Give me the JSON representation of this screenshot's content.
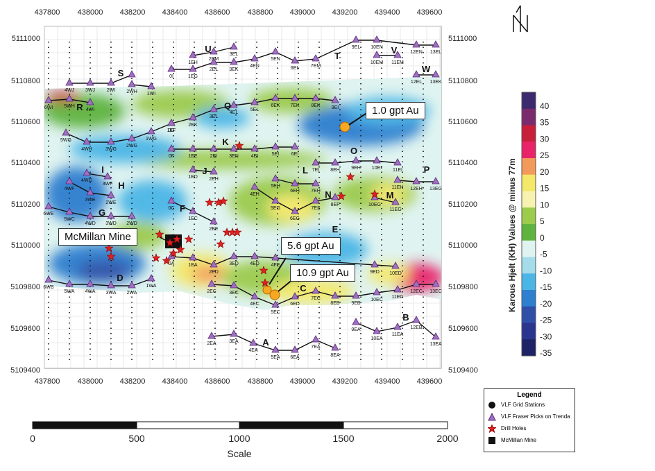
{
  "map": {
    "x_ticks": [
      "437800",
      "438000",
      "438200",
      "438400",
      "438600",
      "438800",
      "439000",
      "439200",
      "439400",
      "439600"
    ],
    "y_ticks": [
      "5111000",
      "5110800",
      "5110600",
      "5110400",
      "5110200",
      "5110000",
      "5109800",
      "5109600",
      "5109400"
    ],
    "north_label": "N"
  },
  "survey_lines": [
    {
      "label": "A",
      "stations": [
        "2EA",
        "3EA",
        "4EA",
        "5EA",
        "6EA",
        "7EA",
        "8EA"
      ]
    },
    {
      "label": "B",
      "stations": [
        "9EA",
        "10EA",
        "11EA",
        "12EB",
        "13EA"
      ]
    },
    {
      "label": "C",
      "stations": [
        "2EC",
        "3EC",
        "4EC",
        "5EC",
        "6ED",
        "7EC",
        "8EB",
        "9EB",
        "10EC",
        "11EC",
        "12EC",
        "13EC"
      ]
    },
    {
      "label": "D",
      "stations": [
        "6WB",
        "5WA",
        "4WA",
        "3WA",
        "2WA",
        "1WA"
      ]
    },
    {
      "label": "E",
      "stations": [
        "0A",
        "1EA",
        "2ED",
        "3ED",
        "4ED",
        "4FE",
        "9ED",
        "10ED"
      ]
    },
    {
      "label": "F",
      "stations": [
        "0C",
        "1EC",
        "2EE"
      ]
    },
    {
      "label": "G",
      "stations": [
        "6WE",
        "5WC",
        "4WD",
        "3WD",
        "2WD"
      ]
    },
    {
      "label": "H",
      "stations": [
        "4WF",
        "3WE",
        "2WE"
      ]
    },
    {
      "label": "I",
      "stations": [
        "4WG",
        "3WF"
      ]
    },
    {
      "label": "J",
      "stations": [
        "1ED",
        "2EH"
      ]
    },
    {
      "label": "K",
      "stations": [
        "0F",
        "1EE",
        "2EI",
        "3EN",
        "4EI",
        "5EI",
        "6EI"
      ]
    },
    {
      "label": "L",
      "stations": [
        "5EH",
        "6EH",
        "7EH"
      ]
    },
    {
      "label": "M",
      "stations": [
        "10EG",
        "11EG"
      ]
    },
    {
      "label": "N",
      "stations": [
        "4EH",
        "5EG",
        "6EG",
        "7ES",
        "8EF"
      ]
    },
    {
      "label": "O",
      "stations": [
        "7EI",
        "8EH",
        "9EH",
        "10EI",
        "11EI"
      ]
    },
    {
      "label": "P",
      "stations": [
        "11EH",
        "12EH",
        "13EG"
      ]
    },
    {
      "label": "Q",
      "stations": [
        "1EF",
        "2EK",
        "3EL",
        "4EL",
        "5EL",
        "6EK",
        "7EK",
        "8EK",
        "9EI"
      ]
    },
    {
      "label": "R",
      "stations": [
        "6WI",
        "5WH",
        "4WI"
      ]
    },
    {
      "label": "S",
      "stations": [
        "4WJ",
        "3WJ",
        "2WI"
      ]
    },
    {
      "label": "T",
      "stations": [
        "0I",
        "1EG",
        "2EL",
        "3EK",
        "4EN",
        "5EN",
        "6EL",
        "7EM",
        "9EL",
        "10EN",
        "12EN",
        "13EL"
      ]
    },
    {
      "label": "U",
      "stations": [
        "1EH",
        "2EM",
        "3EL"
      ]
    },
    {
      "label": "V",
      "stations": [
        "10EM",
        "11EM"
      ]
    },
    {
      "label": "W",
      "stations": [
        "12EL",
        "13EK"
      ]
    },
    {
      "label": "",
      "stations": [
        "5WG",
        "4WH",
        "3WG",
        "2WG",
        "1WG",
        "0G"
      ]
    },
    {
      "label": "",
      "stations": [
        "2WH",
        "1WI"
      ]
    }
  ],
  "callouts": {
    "mine": "McMillan Mine",
    "gold_1": "1.0 gpt Au",
    "gold_2": "5.6 gpt Au",
    "gold_3": "10.9 gpt Au"
  },
  "colorbar": {
    "title": "Karous Hjelt (KH) Values @ minus 77m",
    "ticks": [
      "40",
      "35",
      "30",
      "25",
      "20",
      "15",
      "10",
      "5",
      "0",
      "-5",
      "-10",
      "-15",
      "-20",
      "-25",
      "-30",
      "-35"
    ],
    "colors": [
      "#3b2a6e",
      "#7a2b6d",
      "#c8203a",
      "#e8236a",
      "#f39a5a",
      "#f3e86a",
      "#f7f2b0",
      "#9ccb4e",
      "#5fb33f",
      "#dff3f0",
      "#a4dcea",
      "#4bb6e6",
      "#2d7fcf",
      "#2f4fa8",
      "#2a3590",
      "#1e2266"
    ]
  },
  "legend": {
    "title": "Legend",
    "items": [
      {
        "label": "VLF Grid Stations",
        "icon": "black-circle"
      },
      {
        "label": "VLF Fraser Picks on Trenda",
        "icon": "purple-triangle"
      },
      {
        "label": "Drill Holes",
        "icon": "red-star"
      },
      {
        "label": "McMillan Mine",
        "icon": "black-square"
      }
    ]
  },
  "scale_bar": {
    "ticks": [
      "0",
      "500",
      "1000",
      "1500",
      "2000"
    ],
    "label": "Scale"
  }
}
